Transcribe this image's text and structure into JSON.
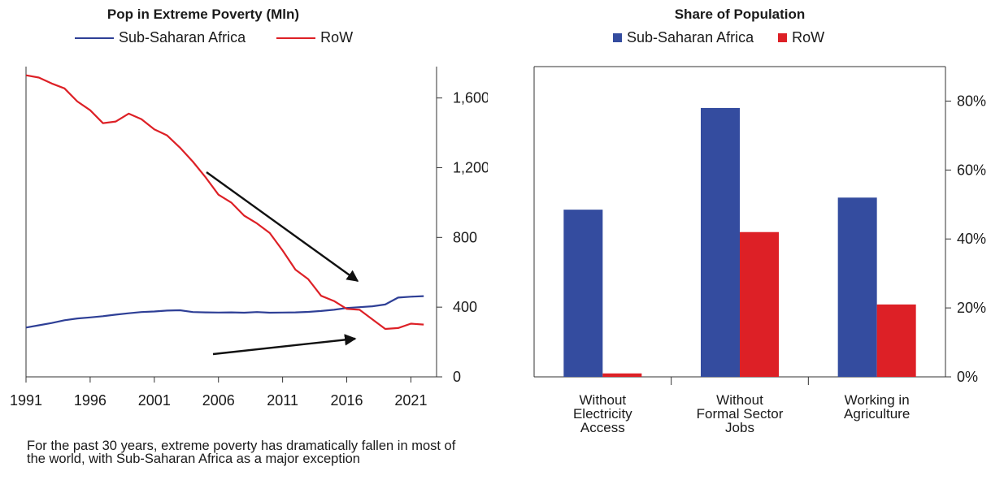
{
  "chart_data": [
    {
      "type": "line",
      "title": "Pop in Extreme Poverty (Mln)",
      "xlabel": "",
      "ylabel": "",
      "x_tick_labels": [
        "1991",
        "1996",
        "2001",
        "2006",
        "2011",
        "2016",
        "2021"
      ],
      "y_tick_labels": [
        "0",
        "400",
        "800",
        "1,200",
        "1,600"
      ],
      "xlim": [
        1991,
        2023
      ],
      "ylim": [
        0,
        1780
      ],
      "y_axis_side": "right",
      "grid": false,
      "legend_position": "top",
      "x": [
        1991,
        1992,
        1993,
        1994,
        1995,
        1996,
        1997,
        1998,
        1999,
        2000,
        2001,
        2002,
        2003,
        2004,
        2005,
        2006,
        2007,
        2008,
        2009,
        2010,
        2011,
        2012,
        2013,
        2014,
        2015,
        2016,
        2017,
        2018,
        2019,
        2020,
        2021,
        2022
      ],
      "series": [
        {
          "name": "Sub-Saharan Africa",
          "color": "#2e3f96",
          "values": [
            283,
            296,
            309,
            325,
            335,
            341,
            348,
            357,
            365,
            372,
            375,
            380,
            382,
            372,
            370,
            369,
            370,
            368,
            372,
            368,
            369,
            370,
            373,
            378,
            385,
            395,
            400,
            405,
            415,
            455,
            460,
            463
          ]
        },
        {
          "name": "RoW",
          "color": "#dd2026",
          "values": [
            1730,
            1717,
            1683,
            1655,
            1580,
            1530,
            1455,
            1465,
            1510,
            1478,
            1420,
            1385,
            1315,
            1235,
            1145,
            1045,
            1000,
            925,
            880,
            825,
            725,
            615,
            560,
            465,
            435,
            390,
            385,
            330,
            275,
            280,
            305,
            300
          ]
        }
      ],
      "annotations": [
        {
          "type": "arrow",
          "direction": "down"
        },
        {
          "type": "arrow",
          "direction": "up"
        }
      ],
      "caption": "For the past 30 years, extreme poverty has dramatically fallen in most of the world, with Sub-Saharan Africa as a major exception"
    },
    {
      "type": "bar",
      "title": "Share of Population",
      "categories": [
        "Without Electricity Access",
        "Without Formal Sector Jobs",
        "Working in Agriculture"
      ],
      "category_lines": [
        [
          "Without",
          "Electricity",
          "Access"
        ],
        [
          "Without",
          "Formal Sector",
          "Jobs"
        ],
        [
          "Working in",
          "Agriculture"
        ]
      ],
      "y_tick_labels": [
        "0%",
        "20%",
        "40%",
        "60%",
        "80%"
      ],
      "ylim": [
        0,
        90
      ],
      "y_axis_side": "right",
      "grid": false,
      "legend_position": "top",
      "series": [
        {
          "name": "Sub-Saharan Africa",
          "color": "#344c9f",
          "values": [
            48.5,
            78,
            52
          ]
        },
        {
          "name": "RoW",
          "color": "#dd2026",
          "values": [
            1,
            42,
            21
          ]
        }
      ]
    }
  ]
}
